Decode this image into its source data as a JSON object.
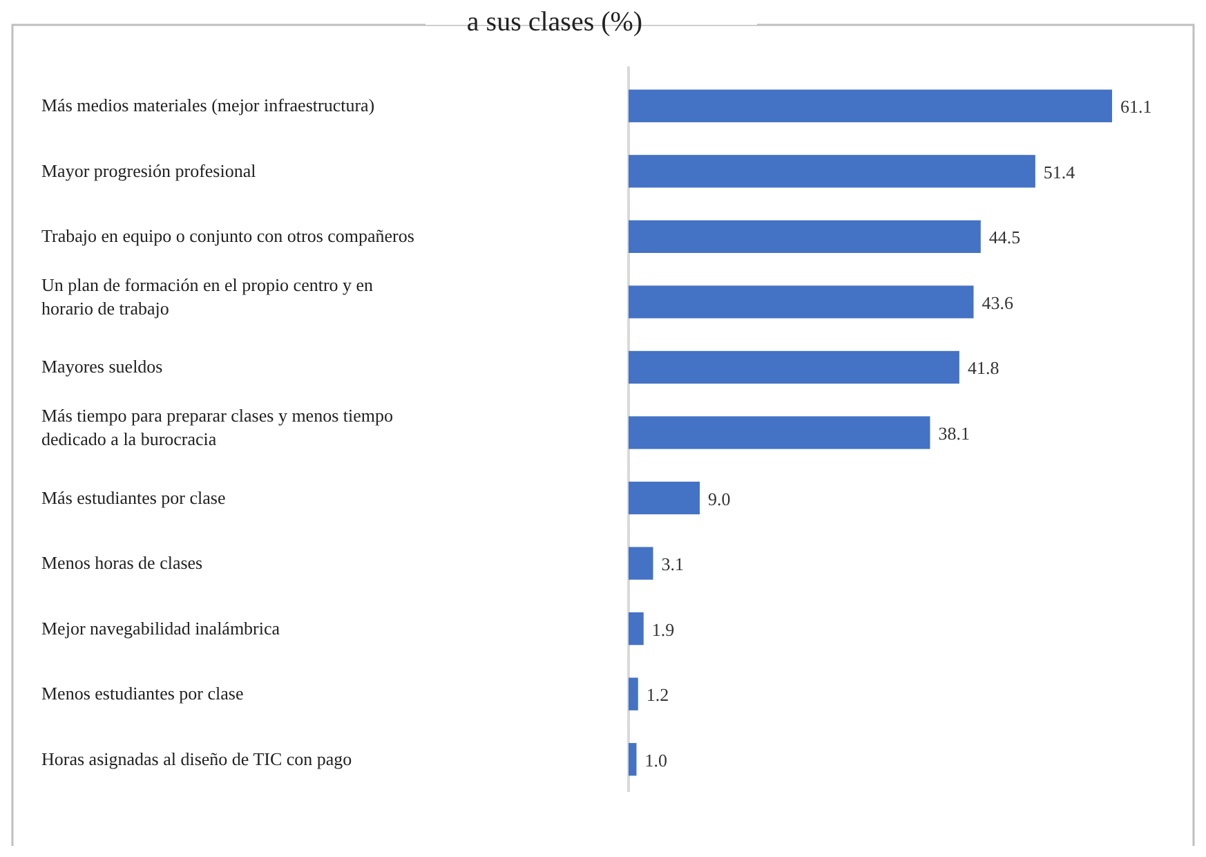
{
  "chart_data": {
    "type": "bar",
    "orientation": "horizontal",
    "title": "a sus clases (%)",
    "categories": [
      "Más medios materiales (mejor infraestructura)",
      "Mayor progresión profesional",
      "Trabajo en equipo o conjunto con otros compañeros",
      "Un plan de formación en el propio centro y en horario de trabajo",
      "Mayores sueldos",
      "Más tiempo para preparar clases y menos tiempo dedicado a la burocracia",
      "Más estudiantes por clase",
      "Menos horas de clases",
      "Mejor navegabilidad inalámbrica",
      "Menos estudiantes por clase",
      "Horas asignadas al diseño de TIC con pago"
    ],
    "values": [
      61.1,
      51.4,
      44.5,
      43.6,
      41.8,
      38.1,
      9.0,
      3.1,
      1.9,
      1.2,
      1.0
    ],
    "value_labels": [
      "61.1",
      "51.4",
      "44.5",
      "43.6",
      "41.8",
      "38.1",
      "9.0",
      "3.1",
      "1.9",
      "1.2",
      "1.0"
    ],
    "color": "#4472c4"
  }
}
